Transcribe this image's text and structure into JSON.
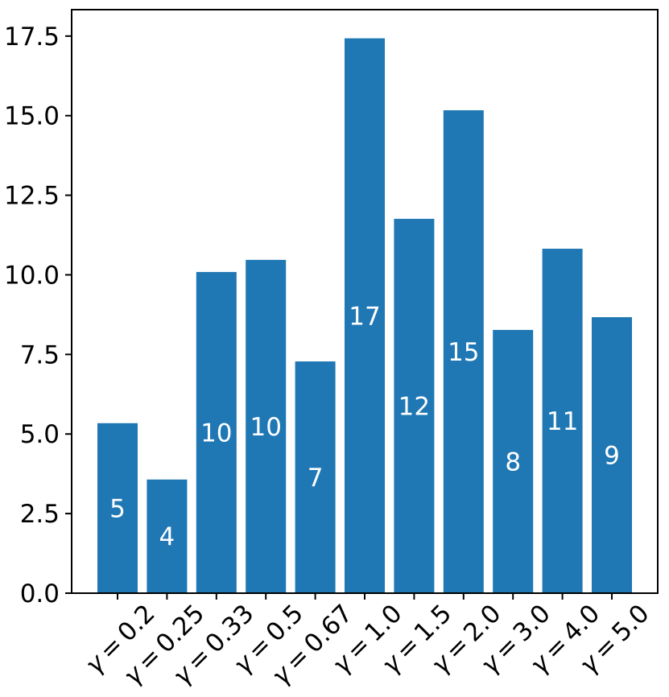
{
  "chart_data": {
    "type": "bar",
    "title": "",
    "xlabel": "",
    "ylabel": "",
    "categories": [
      "γ = 0.2",
      "γ = 0.25",
      "γ = 0.33",
      "γ = 0.5",
      "γ = 0.67",
      "γ = 1.0",
      "γ = 1.5",
      "γ = 2.0",
      "γ = 3.0",
      "γ = 4.0",
      "γ = 5.0"
    ],
    "values": [
      5.34,
      3.57,
      10.09,
      10.47,
      7.28,
      17.43,
      11.76,
      15.17,
      8.27,
      10.82,
      8.67
    ],
    "bar_labels": [
      "5",
      "4",
      "10",
      "10",
      "7",
      "17",
      "12",
      "15",
      "8",
      "11",
      "9"
    ],
    "ylim": [
      0,
      18.33
    ],
    "yticks": [
      0.0,
      2.5,
      5.0,
      7.5,
      10.0,
      12.5,
      15.0,
      17.5
    ],
    "ytick_labels": [
      "0.0",
      "2.5",
      "5.0",
      "7.5",
      "10.0",
      "12.5",
      "15.0",
      "17.5"
    ],
    "x_tick_rotation_deg": 45,
    "grid": false,
    "legend_position": "none",
    "colors": {
      "bar": "#1f77b4",
      "bar_label": "#ffffff",
      "axis": "#000000",
      "tick_label": "#000000",
      "background": "#ffffff"
    }
  }
}
